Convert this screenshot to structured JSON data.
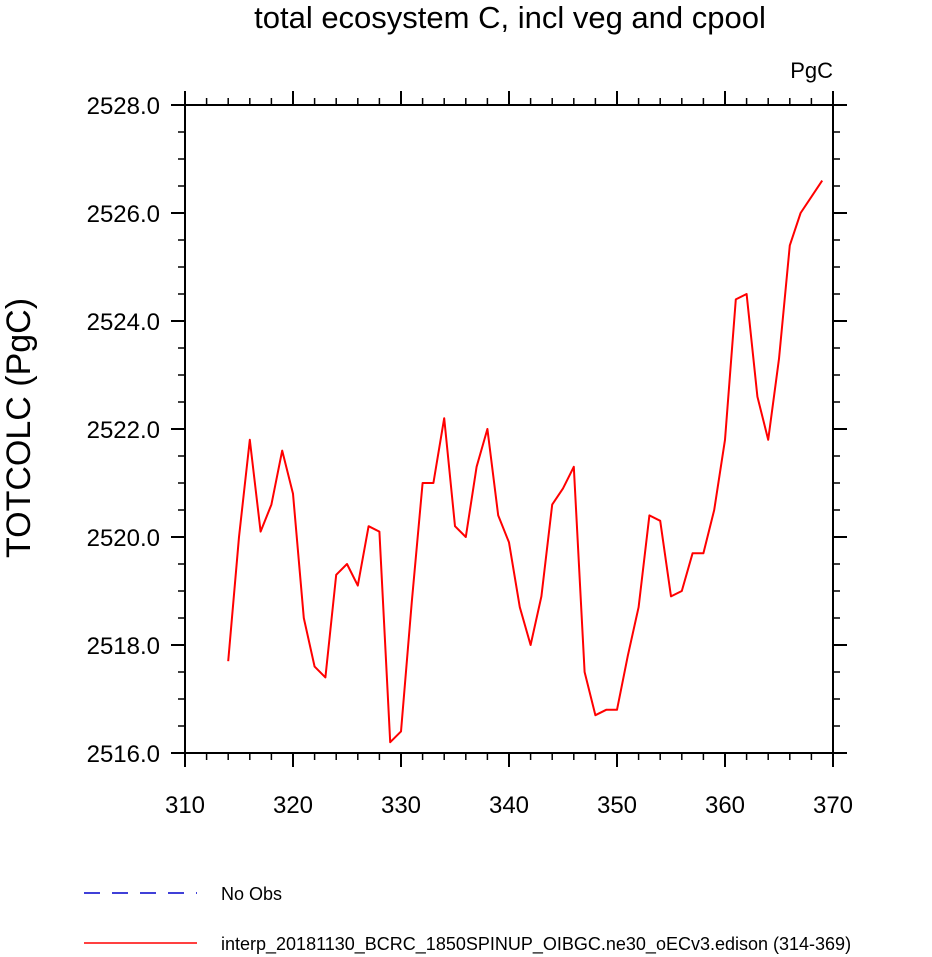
{
  "chart_data": {
    "type": "line",
    "title": "total ecosystem C, incl veg and cpool",
    "units": "PgC",
    "ylabel": "TOTCOLC  (PgC)",
    "xlabel": "",
    "xlim": [
      310,
      370
    ],
    "ylim": [
      2516.0,
      2528.0
    ],
    "x_ticks": [
      310,
      320,
      330,
      340,
      350,
      360,
      370
    ],
    "x_tick_labels": [
      "310",
      "320",
      "330",
      "340",
      "350",
      "360",
      "370"
    ],
    "y_ticks": [
      2516.0,
      2518.0,
      2520.0,
      2522.0,
      2524.0,
      2526.0,
      2528.0
    ],
    "y_tick_labels": [
      "2516.0",
      "2518.0",
      "2520.0",
      "2522.0",
      "2524.0",
      "2526.0",
      "2528.0"
    ],
    "series": [
      {
        "name": "interp_20181130_BCRC_1850SPINUP_OIBGC.ne30_oECv3.edison (314-369)",
        "color": "#ff0000",
        "style": "solid",
        "x": [
          314,
          315,
          316,
          317,
          318,
          319,
          320,
          321,
          322,
          323,
          324,
          325,
          326,
          327,
          328,
          329,
          330,
          331,
          332,
          333,
          334,
          335,
          336,
          337,
          338,
          339,
          340,
          341,
          342,
          343,
          344,
          345,
          346,
          347,
          348,
          349,
          350,
          351,
          352,
          353,
          354,
          355,
          356,
          357,
          358,
          359,
          360,
          361,
          362,
          363,
          364,
          365,
          366,
          367,
          368,
          369
        ],
        "values": [
          2517.7,
          2520.0,
          2521.8,
          2520.1,
          2520.6,
          2521.6,
          2520.8,
          2518.5,
          2517.6,
          2517.4,
          2519.3,
          2519.5,
          2519.1,
          2520.2,
          2520.1,
          2516.2,
          2516.4,
          2518.8,
          2521.0,
          2521.0,
          2522.2,
          2520.2,
          2520.0,
          2521.3,
          2522.0,
          2520.4,
          2519.9,
          2518.7,
          2518.0,
          2518.9,
          2520.6,
          2520.9,
          2521.3,
          2517.5,
          2516.7,
          2516.8,
          2516.8,
          2517.8,
          2518.7,
          2520.4,
          2520.3,
          2518.9,
          2519.0,
          2519.7,
          2519.7,
          2520.5,
          2521.8,
          2524.4,
          2524.5,
          2522.6,
          2521.8,
          2523.3,
          2525.4,
          2526.0,
          2526.3,
          2526.6
        ]
      }
    ],
    "legend": [
      {
        "label": "No Obs",
        "color": "#0000cc",
        "style": "dashed"
      },
      {
        "label": "interp_20181130_BCRC_1850SPINUP_OIBGC.ne30_oECv3.edison (314-369)",
        "color": "#ff0000",
        "style": "solid"
      }
    ]
  }
}
